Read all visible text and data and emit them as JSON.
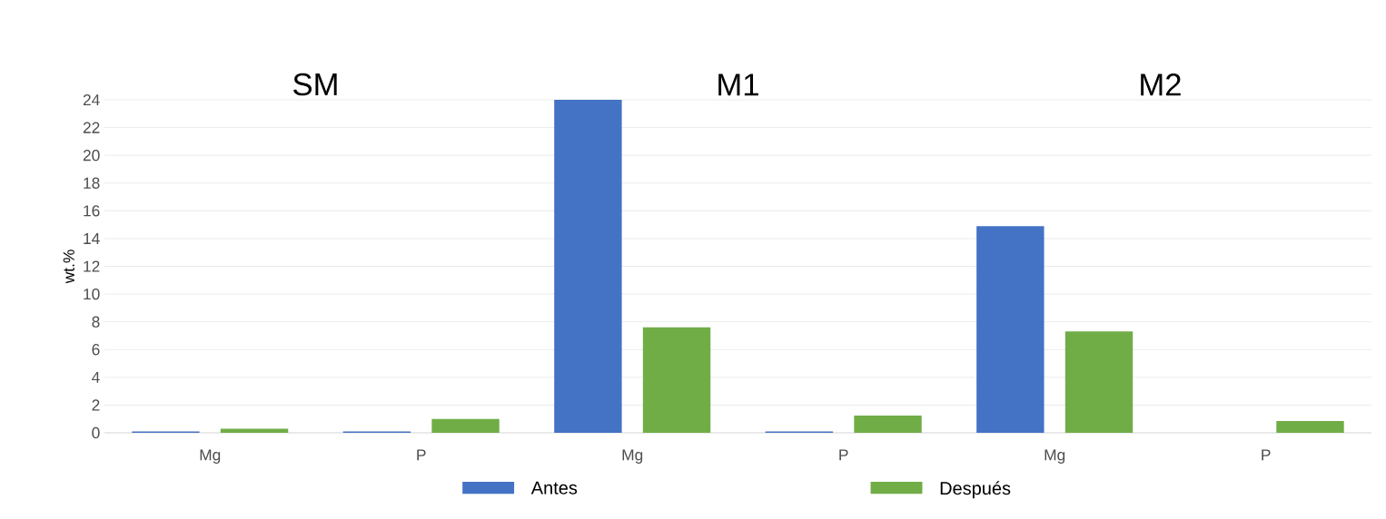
{
  "chart_data": {
    "type": "bar",
    "ylabel": "wt.%",
    "categories": [
      "Mg",
      "P",
      "Mg",
      "P",
      "Mg",
      "P"
    ],
    "series": [
      {
        "name": "Antes",
        "color": "#4472c4",
        "values": [
          0.1,
          0.1,
          24,
          0.1,
          14.9,
          null
        ]
      },
      {
        "name": "Después",
        "color": "#70ad47",
        "values": [
          0.3,
          1.0,
          7.6,
          1.25,
          7.3,
          0.85
        ]
      }
    ],
    "annotations": [
      "SM",
      "M1",
      "M2"
    ],
    "ylim": [
      0,
      24
    ],
    "yticks": [
      0,
      2,
      4,
      6,
      8,
      10,
      12,
      14,
      16,
      18,
      20,
      22,
      24
    ],
    "grid": "y",
    "legend": "bottom"
  }
}
